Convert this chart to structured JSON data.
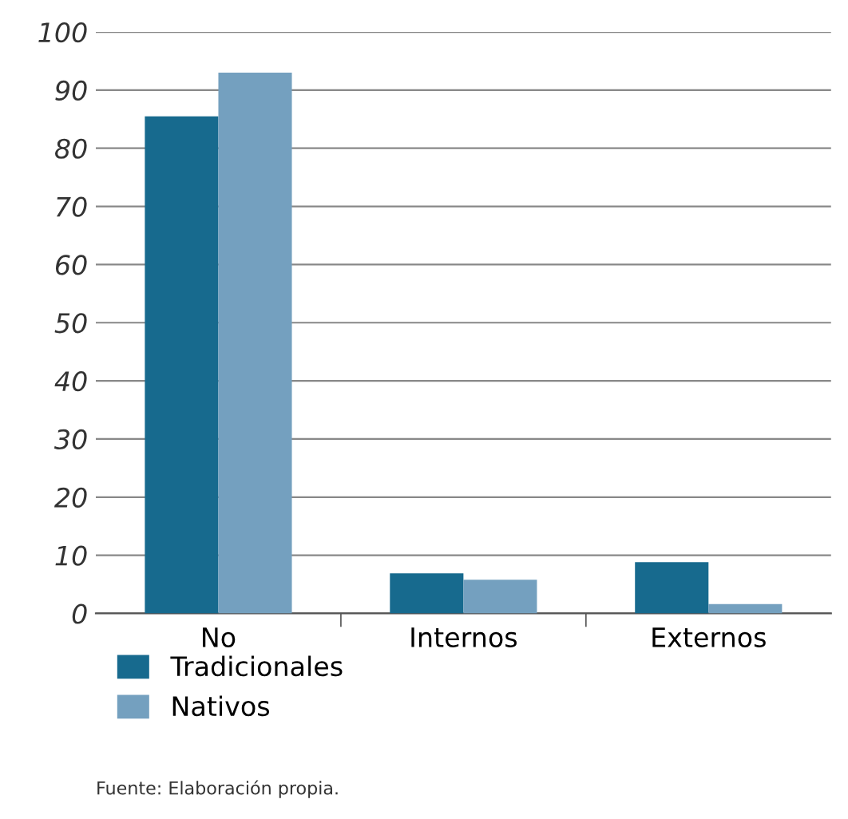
{
  "chart_data": {
    "type": "bar",
    "categories": [
      "No",
      "Internos",
      "Externos"
    ],
    "series": [
      {
        "name": "Tradicionales",
        "color": "#176a8e",
        "values": [
          85.5,
          6.9,
          8.8
        ]
      },
      {
        "name": "Nativos",
        "color": "#74a0bf",
        "values": [
          93,
          5.8,
          1.6
        ]
      }
    ],
    "ylim": [
      0,
      100
    ],
    "yticks": [
      0,
      10,
      20,
      30,
      40,
      50,
      60,
      70,
      80,
      90,
      100
    ],
    "grid": "y",
    "legend": "bottom",
    "annotations": [
      "Fuente: Elaboración propia."
    ]
  }
}
